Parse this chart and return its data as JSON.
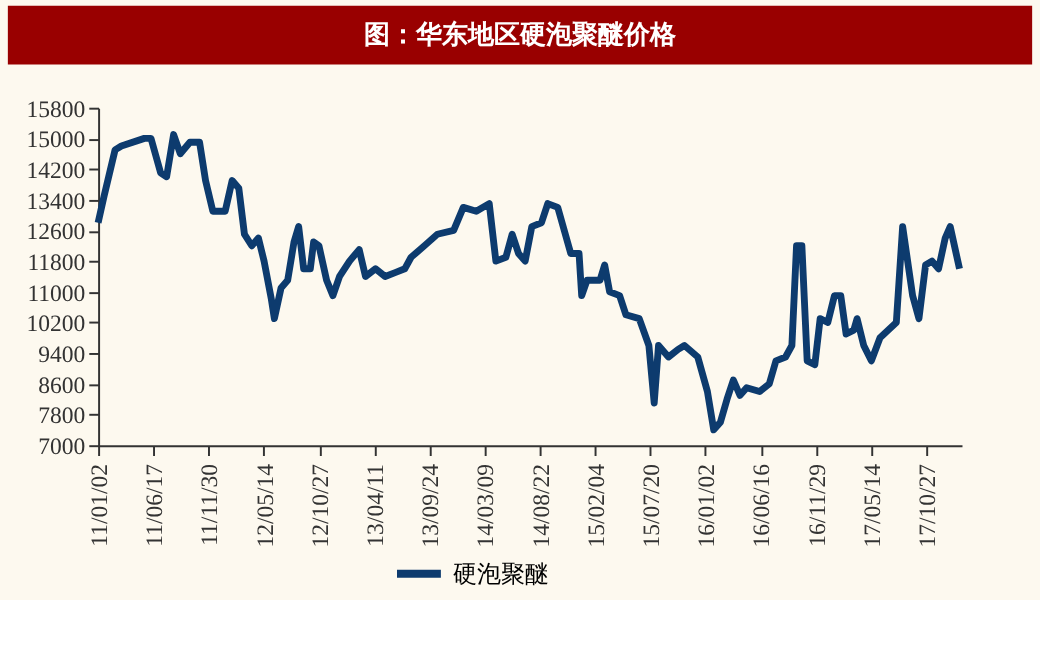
{
  "chart_data": {
    "type": "line",
    "title": "图：华东地区硬泡聚醚价格",
    "xlim": [
      "2011-01-02",
      "2018-02-10"
    ],
    "xticks": [
      {
        "value": "2011-01-02",
        "label": "11/01/02"
      },
      {
        "value": "2011-06-17",
        "label": "11/06/17"
      },
      {
        "value": "2011-11-30",
        "label": "11/11/30"
      },
      {
        "value": "2012-05-14",
        "label": "12/05/14"
      },
      {
        "value": "2012-10-27",
        "label": "12/10/27"
      },
      {
        "value": "2013-04-11",
        "label": "13/04/11"
      },
      {
        "value": "2013-09-24",
        "label": "13/09/24"
      },
      {
        "value": "2014-03-09",
        "label": "14/03/09"
      },
      {
        "value": "2014-08-22",
        "label": "14/08/22"
      },
      {
        "value": "2015-02-04",
        "label": "15/02/04"
      },
      {
        "value": "2015-07-20",
        "label": "15/07/20"
      },
      {
        "value": "2016-01-02",
        "label": "16/01/02"
      },
      {
        "value": "2016-06-16",
        "label": "16/06/16"
      },
      {
        "value": "2016-11-29",
        "label": "16/11/29"
      },
      {
        "value": "2017-05-14",
        "label": "17/05/14"
      },
      {
        "value": "2017-10-27",
        "label": "17/10/27"
      }
    ],
    "ylim": [
      7000,
      15800
    ],
    "yticks": [
      7000,
      7800,
      8600,
      9400,
      10200,
      11000,
      11800,
      12600,
      13400,
      14200,
      15000,
      15800
    ],
    "grid": false,
    "legend": "bottom",
    "marker": "none",
    "line_style": "solid",
    "x": [
      "2011-01-02",
      "2011-01-20",
      "2011-02-22",
      "2011-03-13",
      "2011-05-21",
      "2011-06-10",
      "2011-07-09",
      "2011-07-27",
      "2011-08-17",
      "2011-09-06",
      "2011-10-05",
      "2011-11-03",
      "2011-11-21",
      "2011-12-13",
      "2012-01-19",
      "2012-02-09",
      "2012-02-29",
      "2012-03-17",
      "2012-04-08",
      "2012-04-28",
      "2012-05-15",
      "2012-06-06",
      "2012-06-15",
      "2012-07-05",
      "2012-07-25",
      "2012-08-13",
      "2012-08-27",
      "2012-09-11",
      "2012-10-01",
      "2012-10-11",
      "2012-10-27",
      "2012-11-19",
      "2012-12-08",
      "2012-12-28",
      "2013-01-27",
      "2013-02-25",
      "2013-03-16",
      "2013-04-15",
      "2013-05-14",
      "2013-06-13",
      "2013-07-12",
      "2013-07-31",
      "2013-09-09",
      "2013-10-18",
      "2013-12-06",
      "2014-01-04",
      "2014-02-12",
      "2014-03-23",
      "2014-04-12",
      "2014-05-12",
      "2014-05-31",
      "2014-06-19",
      "2014-07-09",
      "2014-07-29",
      "2014-08-27",
      "2014-09-15",
      "2014-10-15",
      "2014-11-23",
      "2014-12-18",
      "2014-12-26",
      "2015-01-11",
      "2015-02-19",
      "2015-03-05",
      "2015-03-20",
      "2015-04-19",
      "2015-05-08",
      "2015-06-17",
      "2015-07-16",
      "2015-08-01",
      "2015-08-14",
      "2015-09-13",
      "2015-10-12",
      "2015-10-31",
      "2015-12-10",
      "2016-01-08",
      "2016-01-27",
      "2016-02-16",
      "2016-03-07",
      "2016-03-26",
      "2016-04-15",
      "2016-05-05",
      "2016-06-13",
      "2016-07-12",
      "2016-08-01",
      "2016-08-30",
      "2016-09-18",
      "2016-10-02",
      "2016-10-18",
      "2016-11-03",
      "2016-11-26",
      "2016-12-12",
      "2017-01-04",
      "2017-01-24",
      "2017-02-12",
      "2017-02-28",
      "2017-03-23",
      "2017-04-02",
      "2017-04-22",
      "2017-05-15",
      "2017-06-10",
      "2017-07-29",
      "2017-08-17",
      "2017-09-16",
      "2017-10-05",
      "2017-10-25",
      "2017-11-13",
      "2017-12-03",
      "2017-12-23",
      "2018-01-07",
      "2018-02-04"
    ],
    "series": [
      {
        "name": "硬泡聚醚",
        "color": "#0d3b6e",
        "values": [
          12800,
          13500,
          14700,
          14800,
          15000,
          15000,
          14100,
          14000,
          15100,
          14600,
          14900,
          14900,
          13900,
          13100,
          13100,
          13900,
          13700,
          12500,
          12200,
          12400,
          11800,
          10800,
          10300,
          11100,
          11300,
          12300,
          12700,
          11600,
          11600,
          12300,
          12200,
          11300,
          10900,
          11400,
          11800,
          12100,
          11400,
          11600,
          11400,
          11500,
          11600,
          11900,
          12200,
          12500,
          12600,
          13200,
          13100,
          13300,
          11800,
          11900,
          12500,
          12000,
          11800,
          12700,
          12800,
          13300,
          13200,
          12000,
          12000,
          10900,
          11300,
          11300,
          11700,
          11000,
          10900,
          10400,
          10300,
          9600,
          8100,
          9600,
          9300,
          9500,
          9600,
          9300,
          8400,
          7400,
          7600,
          8200,
          8700,
          8300,
          8500,
          8400,
          8600,
          9200,
          9300,
          9600,
          12200,
          12200,
          9200,
          9100,
          10300,
          10200,
          10900,
          10900,
          9900,
          10000,
          10300,
          9600,
          9200,
          9800,
          10200,
          12700,
          10900,
          10300,
          11700,
          11800,
          11600,
          12400,
          12700,
          11600
        ]
      }
    ]
  }
}
